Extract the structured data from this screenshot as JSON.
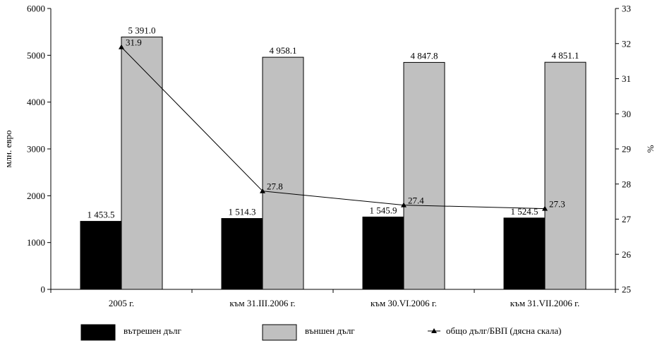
{
  "chart_data": {
    "type": "bar",
    "title": "",
    "categories": [
      "2005 г.",
      "към 31.III.2006 г.",
      "към 30.VI.2006 г.",
      "към 31.VII.2006 г."
    ],
    "series": [
      {
        "name": "вътрешен дълг",
        "kind": "bar",
        "axis": "left",
        "color": "#000000",
        "values": [
          1453.5,
          1514.3,
          1545.9,
          1524.5
        ],
        "labels": [
          "1 453.5",
          "1 514.3",
          "1 545.9",
          "1 524.5"
        ]
      },
      {
        "name": "външен дълг",
        "kind": "bar",
        "axis": "left",
        "color": "#c0c0c0",
        "values": [
          5391.0,
          4958.1,
          4847.8,
          4851.1
        ],
        "labels": [
          "5 391.0",
          "4 958.1",
          "4 847.8",
          "4 851.1"
        ]
      },
      {
        "name": "общо дълг/БВП (дясна скала)",
        "kind": "line",
        "axis": "right",
        "color": "#000000",
        "marker": "triangle",
        "values": [
          31.9,
          27.8,
          27.4,
          27.3
        ],
        "labels": [
          "31.9",
          "27.8",
          "27.4",
          "27.3"
        ]
      }
    ],
    "ylabel": "млн. евро",
    "y2label": "%",
    "ylim": [
      0,
      6000
    ],
    "y2lim": [
      25,
      33
    ],
    "yticks": [
      "0",
      "1000",
      "2000",
      "3000",
      "4000",
      "5000",
      "6000"
    ],
    "y2ticks": [
      "25",
      "26",
      "27",
      "28",
      "29",
      "30",
      "31",
      "32",
      "33"
    ],
    "grid": false,
    "legend_position": "bottom"
  }
}
